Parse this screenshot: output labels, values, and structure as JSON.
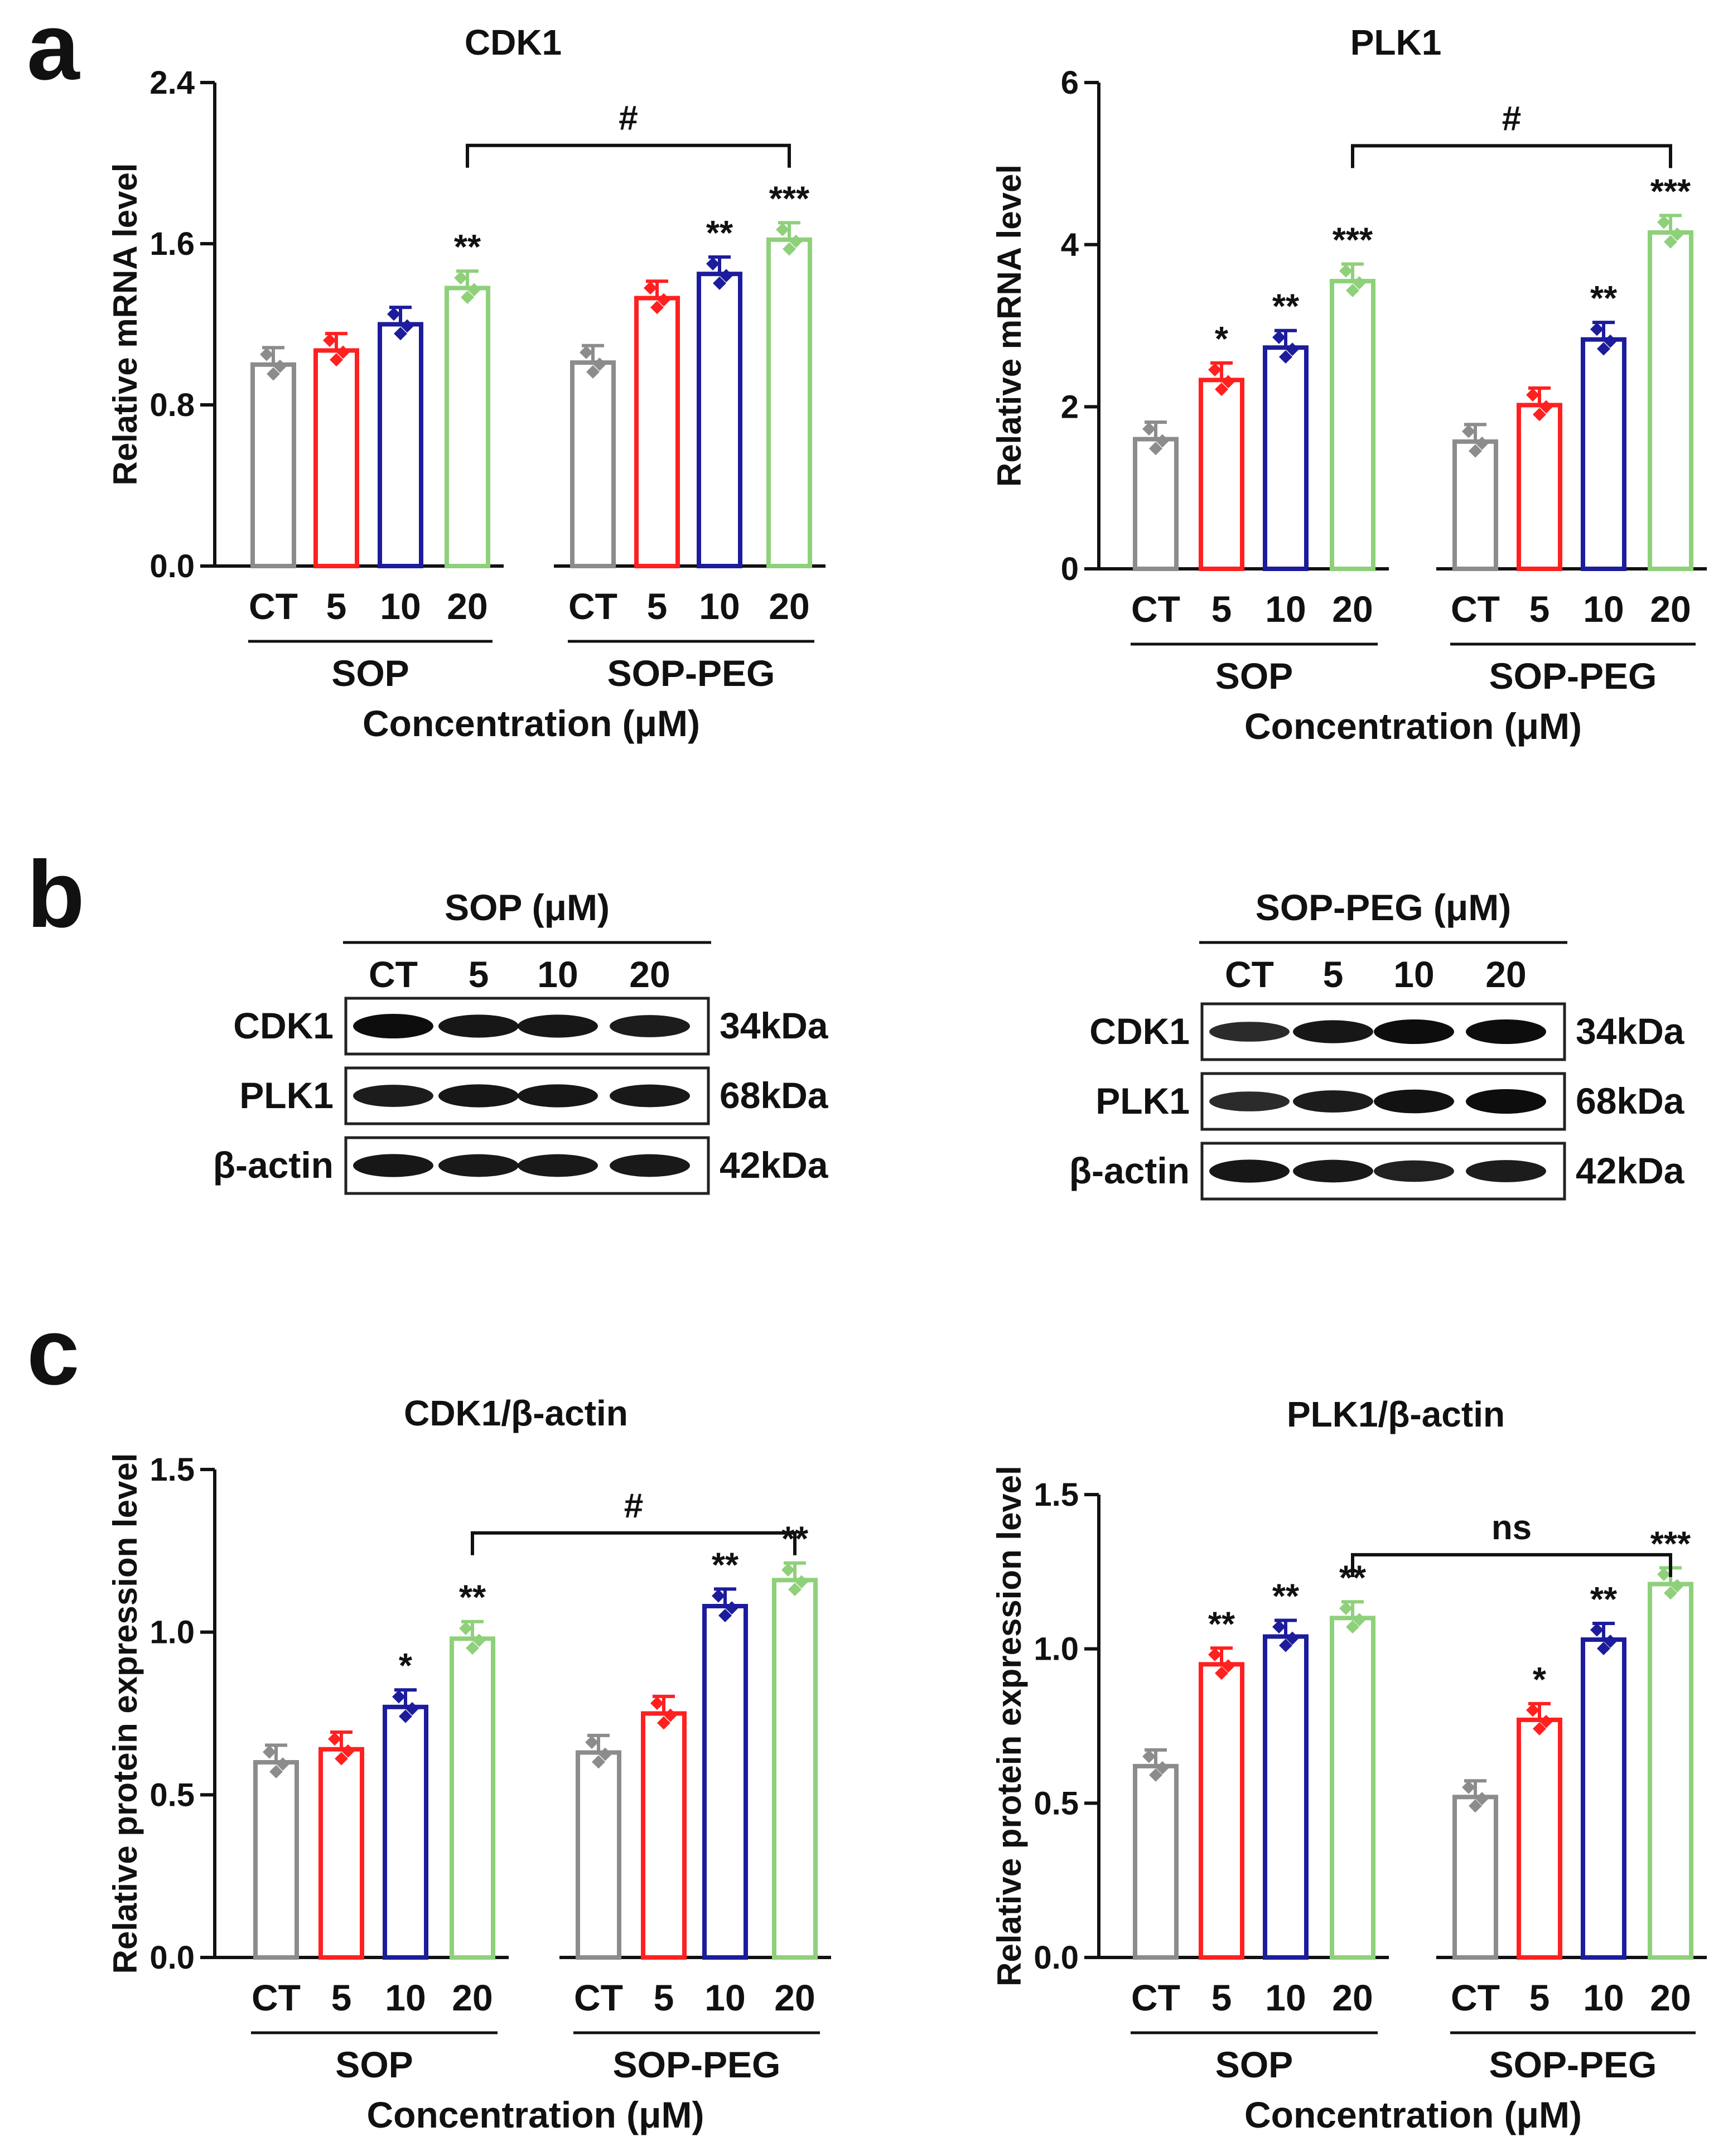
{
  "panel_labels": [
    "a",
    "b",
    "c"
  ],
  "colors": {
    "CT": "#8c8c8c",
    "5": "#ff2020",
    "10": "#1c1c9c",
    "20": "#8fd07a",
    "axis": "#111111"
  },
  "chart_data": [
    {
      "type": "bar",
      "panel": "a",
      "title": "CDK1",
      "ylabel": "Relative mRNA level",
      "xlabel": "Concentration (μM)",
      "ylim": [
        0,
        2.4
      ],
      "yticks": [
        "0.0",
        "0.8",
        "1.6",
        "2.4"
      ],
      "categories": [
        "CT",
        "5",
        "10",
        "20"
      ],
      "groups": [
        {
          "name": "SOP",
          "values": [
            1.0,
            1.07,
            1.2,
            1.38
          ],
          "sig": [
            "",
            "",
            "",
            "**"
          ]
        },
        {
          "name": "SOP-PEG",
          "values": [
            1.01,
            1.33,
            1.45,
            1.62
          ],
          "sig": [
            "",
            "",
            "**",
            "***"
          ]
        }
      ],
      "bracket": "#"
    },
    {
      "type": "bar",
      "panel": "a",
      "title": "PLK1",
      "ylabel": "Relative mRNA level",
      "xlabel": "Concentration (μM)",
      "ylim": [
        0,
        6
      ],
      "yticks": [
        "0",
        "2",
        "4",
        "6"
      ],
      "categories": [
        "CT",
        "5",
        "10",
        "20"
      ],
      "groups": [
        {
          "name": "SOP",
          "values": [
            1.6,
            2.33,
            2.73,
            3.55
          ],
          "sig": [
            "",
            "*",
            "**",
            "***"
          ]
        },
        {
          "name": "SOP-PEG",
          "values": [
            1.57,
            2.02,
            2.83,
            4.15
          ],
          "sig": [
            "",
            "",
            "**",
            "***"
          ]
        }
      ],
      "bracket": "#"
    },
    {
      "type": "bar",
      "panel": "c",
      "title": "CDK1/β-actin",
      "ylabel": "Relative protein expression level",
      "xlabel": "Concentration (μM)",
      "ylim": [
        0,
        1.5
      ],
      "yticks": [
        "0.0",
        "0.5",
        "1.0",
        "1.5"
      ],
      "categories": [
        "CT",
        "5",
        "10",
        "20"
      ],
      "groups": [
        {
          "name": "SOP",
          "values": [
            0.6,
            0.64,
            0.77,
            0.98
          ],
          "sig": [
            "",
            "",
            "*",
            "**"
          ]
        },
        {
          "name": "SOP-PEG",
          "values": [
            0.63,
            0.75,
            1.08,
            1.16
          ],
          "sig": [
            "",
            "",
            "**",
            "**"
          ]
        }
      ],
      "bracket": "#"
    },
    {
      "type": "bar",
      "panel": "c",
      "title": "PLK1/β-actin",
      "ylabel": "Relative protein expression level",
      "xlabel": "Concentration (μM)",
      "ylim": [
        0,
        1.5
      ],
      "yticks": [
        "0.0",
        "0.5",
        "1.0",
        "1.5"
      ],
      "categories": [
        "CT",
        "5",
        "10",
        "20"
      ],
      "groups": [
        {
          "name": "SOP",
          "values": [
            0.62,
            0.95,
            1.04,
            1.1
          ],
          "sig": [
            "",
            "**",
            "**",
            "**"
          ]
        },
        {
          "name": "SOP-PEG",
          "values": [
            0.52,
            0.77,
            1.03,
            1.21
          ],
          "sig": [
            "",
            "*",
            "**",
            "***"
          ]
        }
      ],
      "bracket": "ns"
    }
  ],
  "blots": [
    {
      "treatment": "SOP (μM)",
      "lanes": [
        "CT",
        "5",
        "10",
        "20"
      ],
      "rows": [
        {
          "protein": "CDK1",
          "size": "34kDa",
          "intensity": [
            1.0,
            0.9,
            0.9,
            0.85
          ]
        },
        {
          "protein": "PLK1",
          "size": "68kDa",
          "intensity": [
            0.85,
            0.9,
            0.9,
            0.88
          ]
        },
        {
          "protein": "β-actin",
          "size": "42kDa",
          "intensity": [
            0.9,
            0.88,
            0.88,
            0.88
          ]
        }
      ]
    },
    {
      "treatment": "SOP-PEG (μM)",
      "lanes": [
        "CT",
        "5",
        "10",
        "20"
      ],
      "rows": [
        {
          "protein": "CDK1",
          "size": "34kDa",
          "intensity": [
            0.7,
            0.9,
            1.0,
            1.0
          ]
        },
        {
          "protein": "PLK1",
          "size": "68kDa",
          "intensity": [
            0.7,
            0.85,
            0.95,
            1.0
          ]
        },
        {
          "protein": "β-actin",
          "size": "42kDa",
          "intensity": [
            0.9,
            0.88,
            0.8,
            0.85
          ]
        }
      ]
    }
  ]
}
